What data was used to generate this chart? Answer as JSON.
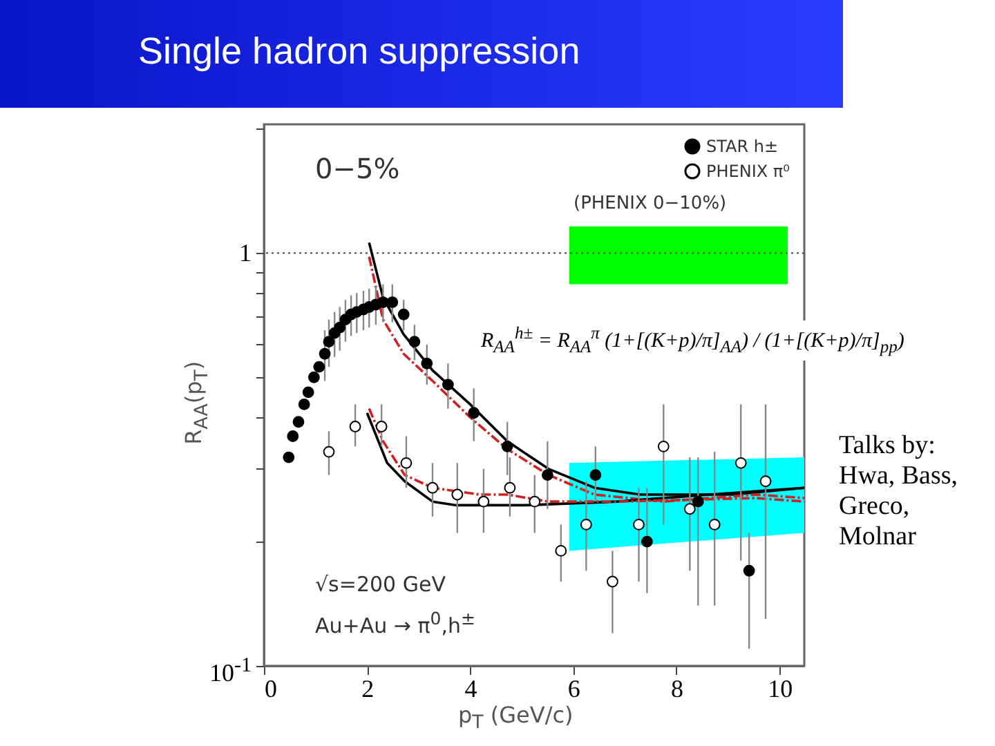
{
  "chart_data": {
    "type": "scatter",
    "title": "Single hadron suppression",
    "xlabel": "p$_{T}$ (GeV/c)",
    "ylabel": "R$_{AA}$(p$_{T}$)",
    "xlim": [
      0,
      10.48
    ],
    "ylim": [
      0.1,
      2.05
    ],
    "log": "y",
    "legend": "top right",
    "xticks": [
      0,
      2,
      4,
      6,
      8,
      10
    ],
    "yticks": [
      {
        "value": 0.1,
        "label": "10$^{-1}$"
      },
      {
        "value": 0.2,
        "label": null
      },
      {
        "value": 0.3,
        "label": null
      },
      {
        "value": 0.4,
        "label": null
      },
      {
        "value": 0.5,
        "label": null
      },
      {
        "value": 0.6,
        "label": null
      },
      {
        "value": 0.7,
        "label": null
      },
      {
        "value": 0.8,
        "label": null
      },
      {
        "value": 0.9,
        "label": null
      },
      1,
      {
        "value": 2,
        "label": null
      }
    ],
    "ref_lines": [
      {
        "axis": "y",
        "value": 1,
        "line_style": "dotted",
        "color": "#555555"
      }
    ],
    "annotations": [
      "0−5%",
      "(PHENIX 0−10%)",
      "R$_{AA}$$^{h±}$ = R$_{AA}$$^{π}$ (1+[(K+p)/π]$_{AA}$) / (1+[(K+p)/π]$_{pp}$)",
      "√s=200 GeV",
      "Au+Au → π$^{0}$,h$^{±}$",
      "Talks by: Hwa, Bass, Greco, Molnar"
    ],
    "series": [
      {
        "type": "area",
        "color": "#00ff00",
        "x": [
          5.92,
          10.16
        ],
        "values": [
          null,
          null
        ],
        "lower": [
          0.84,
          0.84
        ],
        "upper": [
          1.16,
          1.16
        ]
      },
      {
        "type": "area",
        "color": "#00ffff",
        "x": [
          5.92,
          10.48
        ],
        "values": [
          null,
          null
        ],
        "lower": [
          0.19,
          0.21
        ],
        "upper": [
          0.31,
          0.32
        ]
      },
      {
        "type": "line",
        "color": "#000000",
        "line_style": "solid",
        "x": [
          2.04,
          2.31,
          2.71,
          3.27,
          4.0,
          4.72,
          5.52,
          6.41,
          7.29,
          8.2,
          9.09,
          10.48
        ],
        "values": [
          1.06,
          0.78,
          0.635,
          0.52,
          0.43,
          0.35,
          0.3,
          0.27,
          0.26,
          0.26,
          0.26,
          0.27
        ]
      },
      {
        "type": "line",
        "color": "#cc2222",
        "line_style": "dashed",
        "x": [
          2.04,
          2.31,
          2.71,
          3.27,
          4.0,
          4.72,
          5.52,
          6.41,
          7.75,
          9.54,
          10.48
        ],
        "values": [
          0.98,
          0.69,
          0.57,
          0.49,
          0.4,
          0.335,
          0.29,
          0.26,
          0.25,
          0.26,
          0.255
        ]
      },
      {
        "type": "line",
        "color": "#000000",
        "line_style": "solid",
        "x": [
          2.0,
          2.39,
          2.73,
          3.27,
          3.73,
          5.07,
          6.86,
          8.63,
          10.48
        ],
        "values": [
          0.41,
          0.31,
          0.28,
          0.25,
          0.245,
          0.245,
          0.25,
          0.26,
          0.27
        ]
      },
      {
        "type": "line",
        "color": "#cc2222",
        "line_style": "dashed",
        "x": [
          2.04,
          2.31,
          2.73,
          3.27,
          4.18,
          4.72,
          5.52,
          6.86,
          9.54,
          10.48
        ],
        "values": [
          0.42,
          0.35,
          0.29,
          0.27,
          0.26,
          0.26,
          0.25,
          0.25,
          0.255,
          0.25
        ]
      },
      {
        "name": "STAR h±",
        "marker": "circle",
        "color": "#000000",
        "x": [
          0.48,
          0.56,
          0.67,
          0.78,
          0.86,
          0.97,
          1.07,
          1.18,
          1.26,
          1.37,
          1.47,
          1.58,
          1.69,
          1.8,
          1.93,
          2.04,
          2.17,
          2.31,
          2.49,
          2.71,
          2.92,
          3.16,
          3.57,
          4.07,
          4.72,
          5.5,
          6.43,
          7.43,
          8.42,
          9.41
        ],
        "values": [
          0.32,
          0.36,
          0.39,
          0.43,
          0.46,
          0.5,
          0.53,
          0.57,
          0.61,
          0.64,
          0.66,
          0.69,
          0.71,
          0.72,
          0.73,
          0.74,
          0.75,
          0.76,
          0.76,
          0.71,
          0.61,
          0.54,
          0.48,
          0.41,
          0.34,
          0.29,
          0.29,
          0.2,
          0.25,
          0.17
        ],
        "errors": [
          null,
          null,
          null,
          null,
          null,
          null,
          null,
          0.08,
          0.08,
          0.08,
          0.08,
          0.08,
          0.08,
          0.08,
          0.08,
          0.08,
          0.08,
          0.08,
          0.08,
          0.06,
          0.06,
          0.06,
          0.06,
          0.06,
          0.05,
          [
            0.24,
            0.35
          ],
          [
            0.25,
            0.34
          ],
          [
            0.15,
            0.27
          ],
          [
            0.14,
            0.32
          ],
          [
            0.11,
            0.21
          ]
        ]
      },
      {
        "name": "PHENIX π⁰",
        "marker": "circle",
        "color": "#ffffff",
        "x": [
          1.26,
          1.77,
          2.28,
          2.76,
          3.27,
          3.75,
          4.26,
          4.77,
          5.25,
          5.76,
          6.25,
          6.76,
          7.27,
          7.75,
          8.26,
          8.74,
          9.25,
          9.73
        ],
        "values": [
          0.33,
          0.38,
          0.38,
          0.31,
          0.27,
          0.26,
          0.25,
          0.27,
          0.25,
          0.19,
          0.22,
          0.16,
          0.22,
          0.34,
          0.24,
          0.22,
          0.31,
          0.28
        ],
        "errors": [
          [
            0.29,
            0.37
          ],
          [
            0.34,
            0.43
          ],
          [
            0.34,
            0.43
          ],
          [
            0.27,
            0.36
          ],
          [
            0.23,
            0.31
          ],
          [
            0.21,
            0.31
          ],
          [
            0.21,
            0.3
          ],
          [
            0.23,
            0.32
          ],
          [
            0.21,
            0.29
          ],
          [
            0.16,
            0.22
          ],
          [
            0.17,
            0.28
          ],
          [
            0.12,
            0.19
          ],
          [
            0.16,
            0.27
          ],
          [
            0.22,
            0.43
          ],
          [
            0.17,
            0.32
          ],
          [
            0.14,
            0.33
          ],
          [
            0.18,
            0.43
          ],
          [
            0.13,
            0.43
          ]
        ]
      }
    ]
  }
}
